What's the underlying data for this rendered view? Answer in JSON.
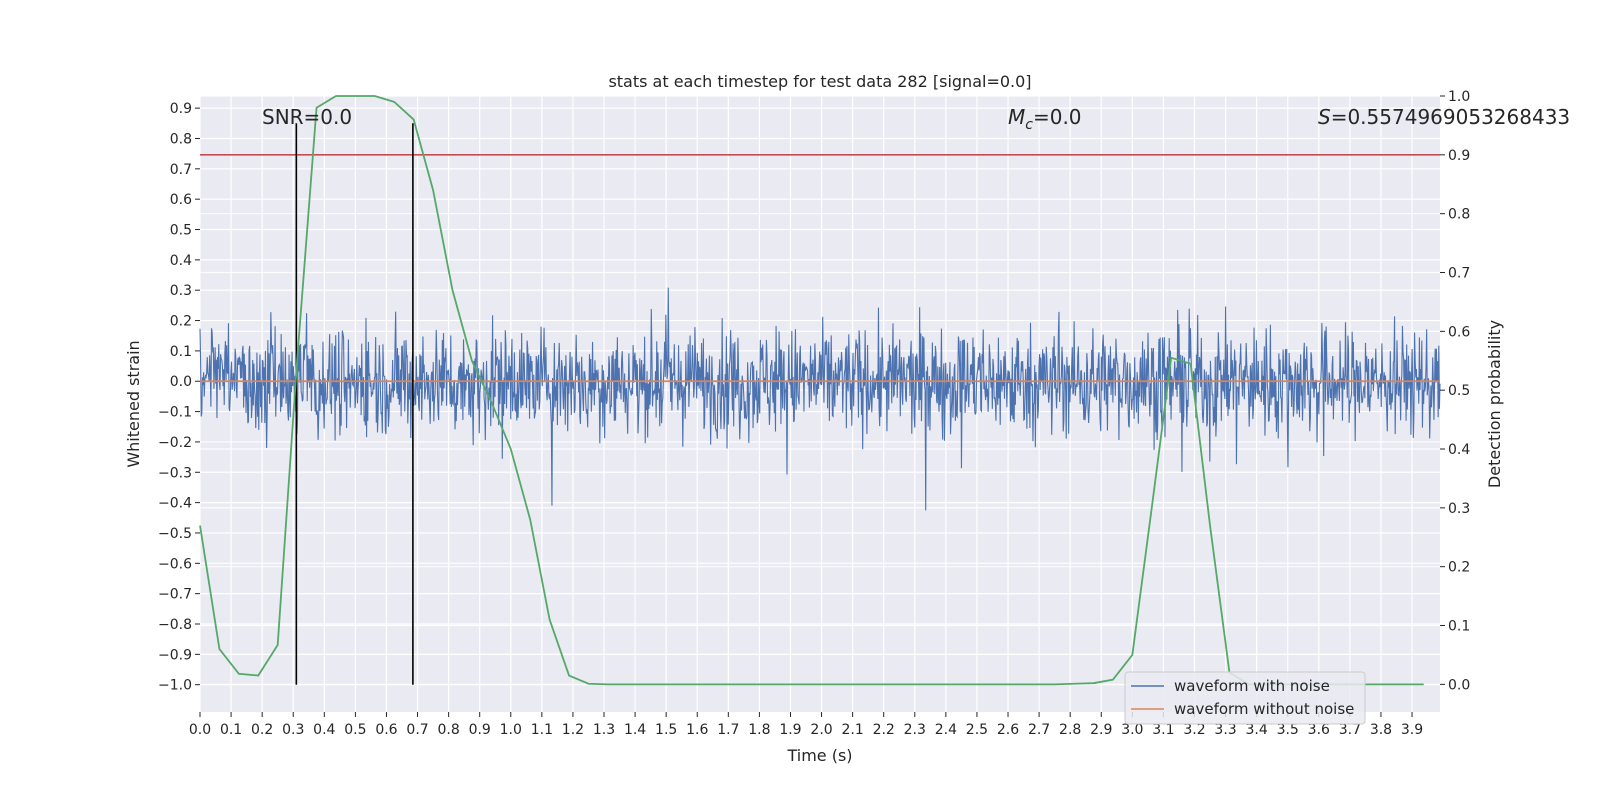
{
  "chart_data": {
    "type": "line",
    "title": "stats at each timestep for test data 282 [signal=0.0]",
    "xlabel": "Time (s)",
    "ylabel": "Whitened strain",
    "y2label": "Detection probability",
    "xlim": [
      0.0,
      3.99
    ],
    "ylim": [
      -1.09,
      0.94
    ],
    "y2lim": [
      -0.047,
      1.0
    ],
    "xticks": [
      0.0,
      0.1,
      0.2,
      0.3,
      0.4,
      0.5,
      0.6,
      0.7,
      0.8,
      0.9,
      1.0,
      1.1,
      1.2,
      1.3,
      1.4,
      1.5,
      1.6,
      1.7,
      1.8,
      1.9,
      2.0,
      2.1,
      2.2,
      2.3,
      2.4,
      2.5,
      2.6,
      2.7,
      2.8,
      2.9,
      3.0,
      3.1,
      3.2,
      3.3,
      3.4,
      3.5,
      3.6,
      3.7,
      3.8,
      3.9
    ],
    "yticks": [
      0.9,
      0.8,
      0.7,
      0.6,
      0.5,
      0.4,
      0.3,
      0.2,
      0.1,
      0.0,
      -0.1,
      -0.2,
      -0.3,
      -0.4,
      -0.5,
      -0.6,
      -0.7,
      -0.8,
      -0.9,
      -1.0
    ],
    "y2ticks": [
      1.0,
      0.9,
      0.8,
      0.7,
      0.6,
      0.5,
      0.4,
      0.3,
      0.2,
      0.1,
      0.0
    ],
    "grid": true,
    "annotations": {
      "snr_label": "SNR=0.0",
      "mc_label": "M",
      "mc_sub": "c",
      "mc_value": "=0.0",
      "s_label": "S",
      "s_value": "=0.5574969053268433"
    },
    "threshold_line": {
      "y2": 0.9,
      "color": "#c44e52"
    },
    "vertical_lines": [
      0.31,
      0.685
    ],
    "legend": {
      "placement": "lower-right",
      "entries": [
        {
          "label": "waveform with noise",
          "color": "#4c72b0"
        },
        {
          "label": "waveform without noise",
          "color": "#dd8452"
        }
      ]
    },
    "series": [
      {
        "name": "waveform with noise",
        "color": "#4c72b0",
        "axis": "left",
        "style": "dense-noise",
        "amplitude_range": [
          -1.0,
          0.85
        ]
      },
      {
        "name": "waveform without noise",
        "color": "#dd8452",
        "axis": "left",
        "x": [
          0.0,
          3.99
        ],
        "y": [
          0.0,
          0.0
        ]
      },
      {
        "color": "#55a868",
        "axis": "right",
        "x": [
          0.0,
          0.0625,
          0.125,
          0.1875,
          0.25,
          0.3125,
          0.375,
          0.4375,
          0.5,
          0.5625,
          0.625,
          0.6875,
          0.75,
          0.8125,
          0.875,
          0.9375,
          1.0,
          1.0625,
          1.125,
          1.1875,
          1.25,
          1.3125,
          1.375,
          1.4375,
          1.5,
          1.5625,
          1.625,
          1.6875,
          1.75,
          1.8125,
          1.875,
          1.9375,
          2.0,
          2.0625,
          2.125,
          2.1875,
          2.25,
          2.3125,
          2.375,
          2.4375,
          2.5,
          2.5625,
          2.625,
          2.6875,
          2.75,
          2.8125,
          2.875,
          2.9375,
          3.0,
          3.0625,
          3.125,
          3.1875,
          3.25,
          3.3125,
          3.375,
          3.4375,
          3.5,
          3.5625,
          3.625,
          3.6875,
          3.75,
          3.8125,
          3.875,
          3.9375
        ],
        "y": [
          0.27,
          0.06,
          0.018,
          0.015,
          0.067,
          0.55,
          0.98,
          1.0,
          1.0,
          1.0,
          0.99,
          0.96,
          0.84,
          0.67,
          0.55,
          0.48,
          0.4,
          0.28,
          0.11,
          0.015,
          0.001,
          0.0,
          0.0,
          0.0,
          0.0,
          0.0,
          0.0,
          0.0,
          0.0,
          0.0,
          0.0,
          0.0,
          0.0,
          0.0,
          0.0,
          0.0,
          0.0,
          0.0,
          0.0,
          0.0,
          0.0,
          0.0,
          0.0,
          0.0,
          0.0,
          0.001,
          0.002,
          0.008,
          0.05,
          0.3,
          0.555,
          0.545,
          0.27,
          0.02,
          0.0,
          0.0,
          0.0,
          0.0,
          0.0,
          0.0,
          0.0,
          0.0,
          0.0,
          0.0
        ]
      }
    ]
  }
}
